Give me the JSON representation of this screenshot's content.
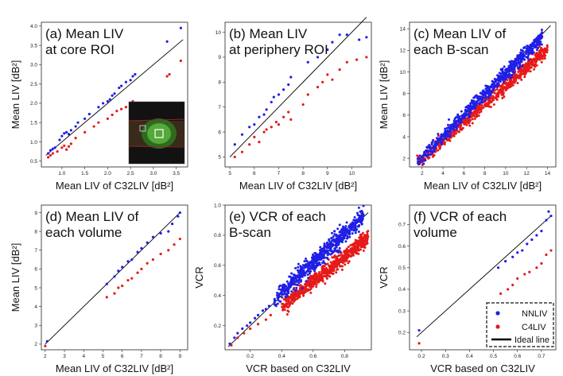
{
  "colors": {
    "nnliv": "#1f1fe6",
    "c4liv": "#e61a1a",
    "ideal": "#000000"
  },
  "legend": {
    "nnliv": "NNLIV",
    "c4liv": "C4LIV",
    "ideal": "Ideal line"
  },
  "chart_data": [
    {
      "id": "a",
      "type": "scatter",
      "title_lines": [
        "(a) Mean LIV",
        "at core ROI"
      ],
      "xlabel": "Mean LIV of C32LIV [dB²]",
      "ylabel": "Mean LIV [dB²]",
      "xlim": [
        0.55,
        3.75
      ],
      "ylim": [
        0.35,
        4.1
      ],
      "xticks": [
        "1.0",
        "1.5",
        "2.0",
        "2.5",
        "3.0",
        "3.5"
      ],
      "yticks": [
        "0.5",
        "1.0",
        "1.5",
        "2.0",
        "2.5",
        "3.0",
        "3.5",
        "4.0"
      ],
      "ideal": [
        [
          0.65,
          0.65
        ],
        [
          3.65,
          3.65
        ]
      ],
      "inset_image": true,
      "series": [
        {
          "name": "NNLIV",
          "points": [
            [
              0.7,
              0.7
            ],
            [
              0.75,
              0.78
            ],
            [
              0.8,
              0.82
            ],
            [
              0.85,
              0.85
            ],
            [
              0.95,
              1.05
            ],
            [
              1.0,
              1.15
            ],
            [
              1.05,
              1.22
            ],
            [
              1.1,
              1.25
            ],
            [
              1.15,
              1.2
            ],
            [
              1.2,
              1.3
            ],
            [
              1.3,
              1.4
            ],
            [
              1.35,
              1.5
            ],
            [
              1.5,
              1.6
            ],
            [
              1.6,
              1.72
            ],
            [
              1.8,
              1.9
            ],
            [
              1.9,
              2.0
            ],
            [
              2.0,
              2.05
            ],
            [
              2.05,
              2.1
            ],
            [
              2.1,
              2.2
            ],
            [
              2.15,
              2.25
            ],
            [
              2.25,
              2.4
            ],
            [
              2.3,
              2.45
            ],
            [
              2.4,
              2.55
            ],
            [
              2.5,
              2.6
            ],
            [
              2.55,
              2.7
            ],
            [
              2.6,
              2.75
            ],
            [
              3.3,
              3.6
            ],
            [
              3.6,
              3.95
            ]
          ]
        },
        {
          "name": "C4LIV",
          "points": [
            [
              0.7,
              0.6
            ],
            [
              0.75,
              0.65
            ],
            [
              0.8,
              0.7
            ],
            [
              0.9,
              0.75
            ],
            [
              1.0,
              0.85
            ],
            [
              1.05,
              0.9
            ],
            [
              1.1,
              0.8
            ],
            [
              1.15,
              0.88
            ],
            [
              1.2,
              0.95
            ],
            [
              1.3,
              1.1
            ],
            [
              1.5,
              1.25
            ],
            [
              1.7,
              1.4
            ],
            [
              1.8,
              1.5
            ],
            [
              2.0,
              1.6
            ],
            [
              2.1,
              1.7
            ],
            [
              2.2,
              1.8
            ],
            [
              2.3,
              1.85
            ],
            [
              2.4,
              1.9
            ],
            [
              2.5,
              1.95
            ],
            [
              2.55,
              2.05
            ],
            [
              3.3,
              2.7
            ],
            [
              3.35,
              2.75
            ],
            [
              3.6,
              3.1
            ]
          ]
        }
      ]
    },
    {
      "id": "b",
      "type": "scatter",
      "title_lines": [
        "(b) Mean LIV",
        "at periphery ROI"
      ],
      "xlabel": "Mean LIV of C32LIV [dB²]",
      "ylabel": "",
      "xlim": [
        4.8,
        10.8
      ],
      "ylim": [
        4.6,
        10.4
      ],
      "xticks": [
        "5",
        "6",
        "7",
        "8",
        "9",
        "10"
      ],
      "yticks": [
        "5",
        "6",
        "7",
        "8",
        "9",
        "10"
      ],
      "ideal": [
        [
          5.0,
          5.0
        ],
        [
          10.6,
          10.6
        ]
      ],
      "series": [
        {
          "name": "NNLIV",
          "points": [
            [
              5.2,
              5.5
            ],
            [
              5.5,
              5.9
            ],
            [
              5.8,
              6.2
            ],
            [
              6.0,
              6.3
            ],
            [
              6.2,
              6.6
            ],
            [
              6.4,
              6.7
            ],
            [
              6.5,
              6.9
            ],
            [
              6.7,
              7.2
            ],
            [
              6.8,
              7.4
            ],
            [
              7.0,
              7.5
            ],
            [
              7.2,
              7.7
            ],
            [
              7.4,
              7.9
            ],
            [
              7.5,
              8.2
            ],
            [
              8.2,
              8.8
            ],
            [
              8.6,
              9.0
            ],
            [
              9.0,
              9.3
            ],
            [
              9.2,
              9.6
            ],
            [
              9.5,
              9.9
            ],
            [
              9.8,
              9.9
            ],
            [
              10.3,
              9.7
            ],
            [
              10.6,
              9.8
            ]
          ]
        },
        {
          "name": "C4LIV",
          "points": [
            [
              5.2,
              5.0
            ],
            [
              5.5,
              5.2
            ],
            [
              5.8,
              5.5
            ],
            [
              6.0,
              5.8
            ],
            [
              6.2,
              5.6
            ],
            [
              6.4,
              6.0
            ],
            [
              6.5,
              6.1
            ],
            [
              6.7,
              6.2
            ],
            [
              6.9,
              6.4
            ],
            [
              7.0,
              6.3
            ],
            [
              7.2,
              6.6
            ],
            [
              7.4,
              6.8
            ],
            [
              7.5,
              6.5
            ],
            [
              8.0,
              7.1
            ],
            [
              8.2,
              7.5
            ],
            [
              8.6,
              7.8
            ],
            [
              8.8,
              8.0
            ],
            [
              9.0,
              8.3
            ],
            [
              9.2,
              8.1
            ],
            [
              9.5,
              8.5
            ],
            [
              9.8,
              8.8
            ],
            [
              10.2,
              8.9
            ],
            [
              10.6,
              9.0
            ]
          ]
        }
      ]
    },
    {
      "id": "c",
      "type": "scatter",
      "title_lines": [
        "(c) Mean LIV of",
        "each B-scan"
      ],
      "xlabel": "Mean LIV of C32LIV [dB²]",
      "ylabel": "Mean LIV [dB²]",
      "xlim": [
        0.8,
        14.8
      ],
      "ylim": [
        1.2,
        14.6
      ],
      "xticks": [
        "2",
        "4",
        "6",
        "8",
        "10",
        "12",
        "14"
      ],
      "yticks": [
        "2",
        "4",
        "6",
        "8",
        "10",
        "12",
        "14"
      ],
      "ideal": [
        [
          1.5,
          1.5
        ],
        [
          14.3,
          14.3
        ]
      ],
      "cloud": [
        {
          "series": "C4LIV",
          "x0": 1.5,
          "x1": 14.0,
          "slope": 0.86,
          "intercept": 0.1,
          "spread": 0.3,
          "n": 700
        },
        {
          "series": "NNLIV",
          "x0": 1.5,
          "x1": 13.5,
          "slope": 0.97,
          "intercept": 0.15,
          "spread": 0.32,
          "n": 700
        }
      ]
    },
    {
      "id": "d",
      "type": "scatter",
      "title_lines": [
        "(d) Mean LIV of",
        "each volume"
      ],
      "xlabel": "Mean LIV of C32LIV [dB²]",
      "ylabel": "Mean LIV [dB²]",
      "xlim": [
        1.8,
        9.4
      ],
      "ylim": [
        1.7,
        9.4
      ],
      "xticks": [
        "2",
        "3",
        "4",
        "5",
        "6",
        "7",
        "8",
        "9"
      ],
      "yticks": [
        "2",
        "3",
        "4",
        "5",
        "6",
        "7",
        "8",
        "9"
      ],
      "ideal": [
        [
          2.0,
          2.0
        ],
        [
          9.0,
          9.0
        ]
      ],
      "series": [
        {
          "name": "NNLIV",
          "points": [
            [
              2.1,
              2.15
            ],
            [
              5.2,
              5.2
            ],
            [
              5.6,
              5.6
            ],
            [
              5.8,
              5.9
            ],
            [
              6.0,
              6.1
            ],
            [
              6.3,
              6.4
            ],
            [
              6.5,
              6.5
            ],
            [
              6.8,
              6.9
            ],
            [
              7.0,
              7.1
            ],
            [
              7.3,
              7.4
            ],
            [
              7.6,
              7.7
            ],
            [
              8.0,
              7.9
            ],
            [
              8.4,
              8.0
            ],
            [
              8.6,
              8.4
            ],
            [
              8.9,
              8.8
            ],
            [
              9.0,
              9.0
            ]
          ]
        },
        {
          "name": "C4LIV",
          "points": [
            [
              2.0,
              1.9
            ],
            [
              5.2,
              4.5
            ],
            [
              5.6,
              4.7
            ],
            [
              5.8,
              5.0
            ],
            [
              6.0,
              5.1
            ],
            [
              6.3,
              5.4
            ],
            [
              6.5,
              5.5
            ],
            [
              6.8,
              5.8
            ],
            [
              7.0,
              6.0
            ],
            [
              7.3,
              6.3
            ],
            [
              7.6,
              6.5
            ],
            [
              8.0,
              6.8
            ],
            [
              8.4,
              7.0
            ],
            [
              8.7,
              7.3
            ],
            [
              9.0,
              7.6
            ]
          ]
        }
      ]
    },
    {
      "id": "e",
      "type": "scatter",
      "title_lines": [
        "(e) VCR of each",
        "B-scan"
      ],
      "xlabel": "VCR based on C32LIV",
      "ylabel": "VCR",
      "xlim": [
        0.04,
        0.97
      ],
      "ylim": [
        0.04,
        1.0
      ],
      "xticks": [
        "0.2",
        "0.4",
        "0.6",
        "0.8"
      ],
      "yticks": [
        "0.2",
        "0.4",
        "0.6",
        "0.8",
        "1.0"
      ],
      "ideal": [
        [
          0.06,
          0.06
        ],
        [
          0.95,
          0.95
        ]
      ],
      "cloud": [
        {
          "series": "C4LIV",
          "x0": 0.4,
          "x1": 0.95,
          "slope": 0.82,
          "intercept": 0.0,
          "spread": 0.025,
          "n": 700
        },
        {
          "series": "NNLIV",
          "x0": 0.35,
          "x1": 0.92,
          "slope": 0.98,
          "intercept": 0.03,
          "spread": 0.03,
          "n": 650
        }
      ],
      "series": [
        {
          "name": "NNLIV",
          "points": [
            [
              0.07,
              0.08
            ],
            [
              0.1,
              0.12
            ],
            [
              0.12,
              0.15
            ],
            [
              0.15,
              0.18
            ],
            [
              0.18,
              0.2
            ],
            [
              0.2,
              0.22
            ],
            [
              0.23,
              0.25
            ],
            [
              0.25,
              0.27
            ],
            [
              0.28,
              0.3
            ],
            [
              0.3,
              0.31
            ],
            [
              0.32,
              0.33
            ]
          ]
        },
        {
          "name": "C4LIV",
          "points": [
            [
              0.08,
              0.07
            ],
            [
              0.12,
              0.12
            ],
            [
              0.16,
              0.15
            ],
            [
              0.2,
              0.18
            ],
            [
              0.25,
              0.21
            ],
            [
              0.3,
              0.24
            ],
            [
              0.33,
              0.27
            ]
          ]
        }
      ]
    },
    {
      "id": "f",
      "type": "scatter",
      "title_lines": [
        "(f) VCR of each",
        "volume"
      ],
      "xlabel": "VCR based on C32LIV",
      "ylabel": "VCR",
      "xlim": [
        0.15,
        0.76
      ],
      "ylim": [
        0.12,
        0.79
      ],
      "xticks": [
        "0.2",
        "0.3",
        "0.4",
        "0.5",
        "0.6",
        "0.7"
      ],
      "yticks": [
        "0.2",
        "0.3",
        "0.4",
        "0.5",
        "0.6",
        "0.7"
      ],
      "ideal": [
        [
          0.18,
          0.18
        ],
        [
          0.74,
          0.74
        ]
      ],
      "series": [
        {
          "name": "NNLIV",
          "points": [
            [
              0.19,
              0.21
            ],
            [
              0.52,
              0.5
            ],
            [
              0.55,
              0.53
            ],
            [
              0.58,
              0.55
            ],
            [
              0.6,
              0.57
            ],
            [
              0.62,
              0.58
            ],
            [
              0.64,
              0.61
            ],
            [
              0.66,
              0.63
            ],
            [
              0.68,
              0.65
            ],
            [
              0.7,
              0.67
            ],
            [
              0.72,
              0.72
            ],
            [
              0.74,
              0.74
            ],
            [
              0.73,
              0.76
            ]
          ]
        },
        {
          "name": "C4LIV",
          "points": [
            [
              0.19,
              0.15
            ],
            [
              0.53,
              0.38
            ],
            [
              0.56,
              0.4
            ],
            [
              0.58,
              0.42
            ],
            [
              0.6,
              0.45
            ],
            [
              0.63,
              0.47
            ],
            [
              0.65,
              0.48
            ],
            [
              0.68,
              0.5
            ],
            [
              0.7,
              0.52
            ],
            [
              0.72,
              0.56
            ],
            [
              0.74,
              0.58
            ]
          ]
        }
      ]
    }
  ]
}
